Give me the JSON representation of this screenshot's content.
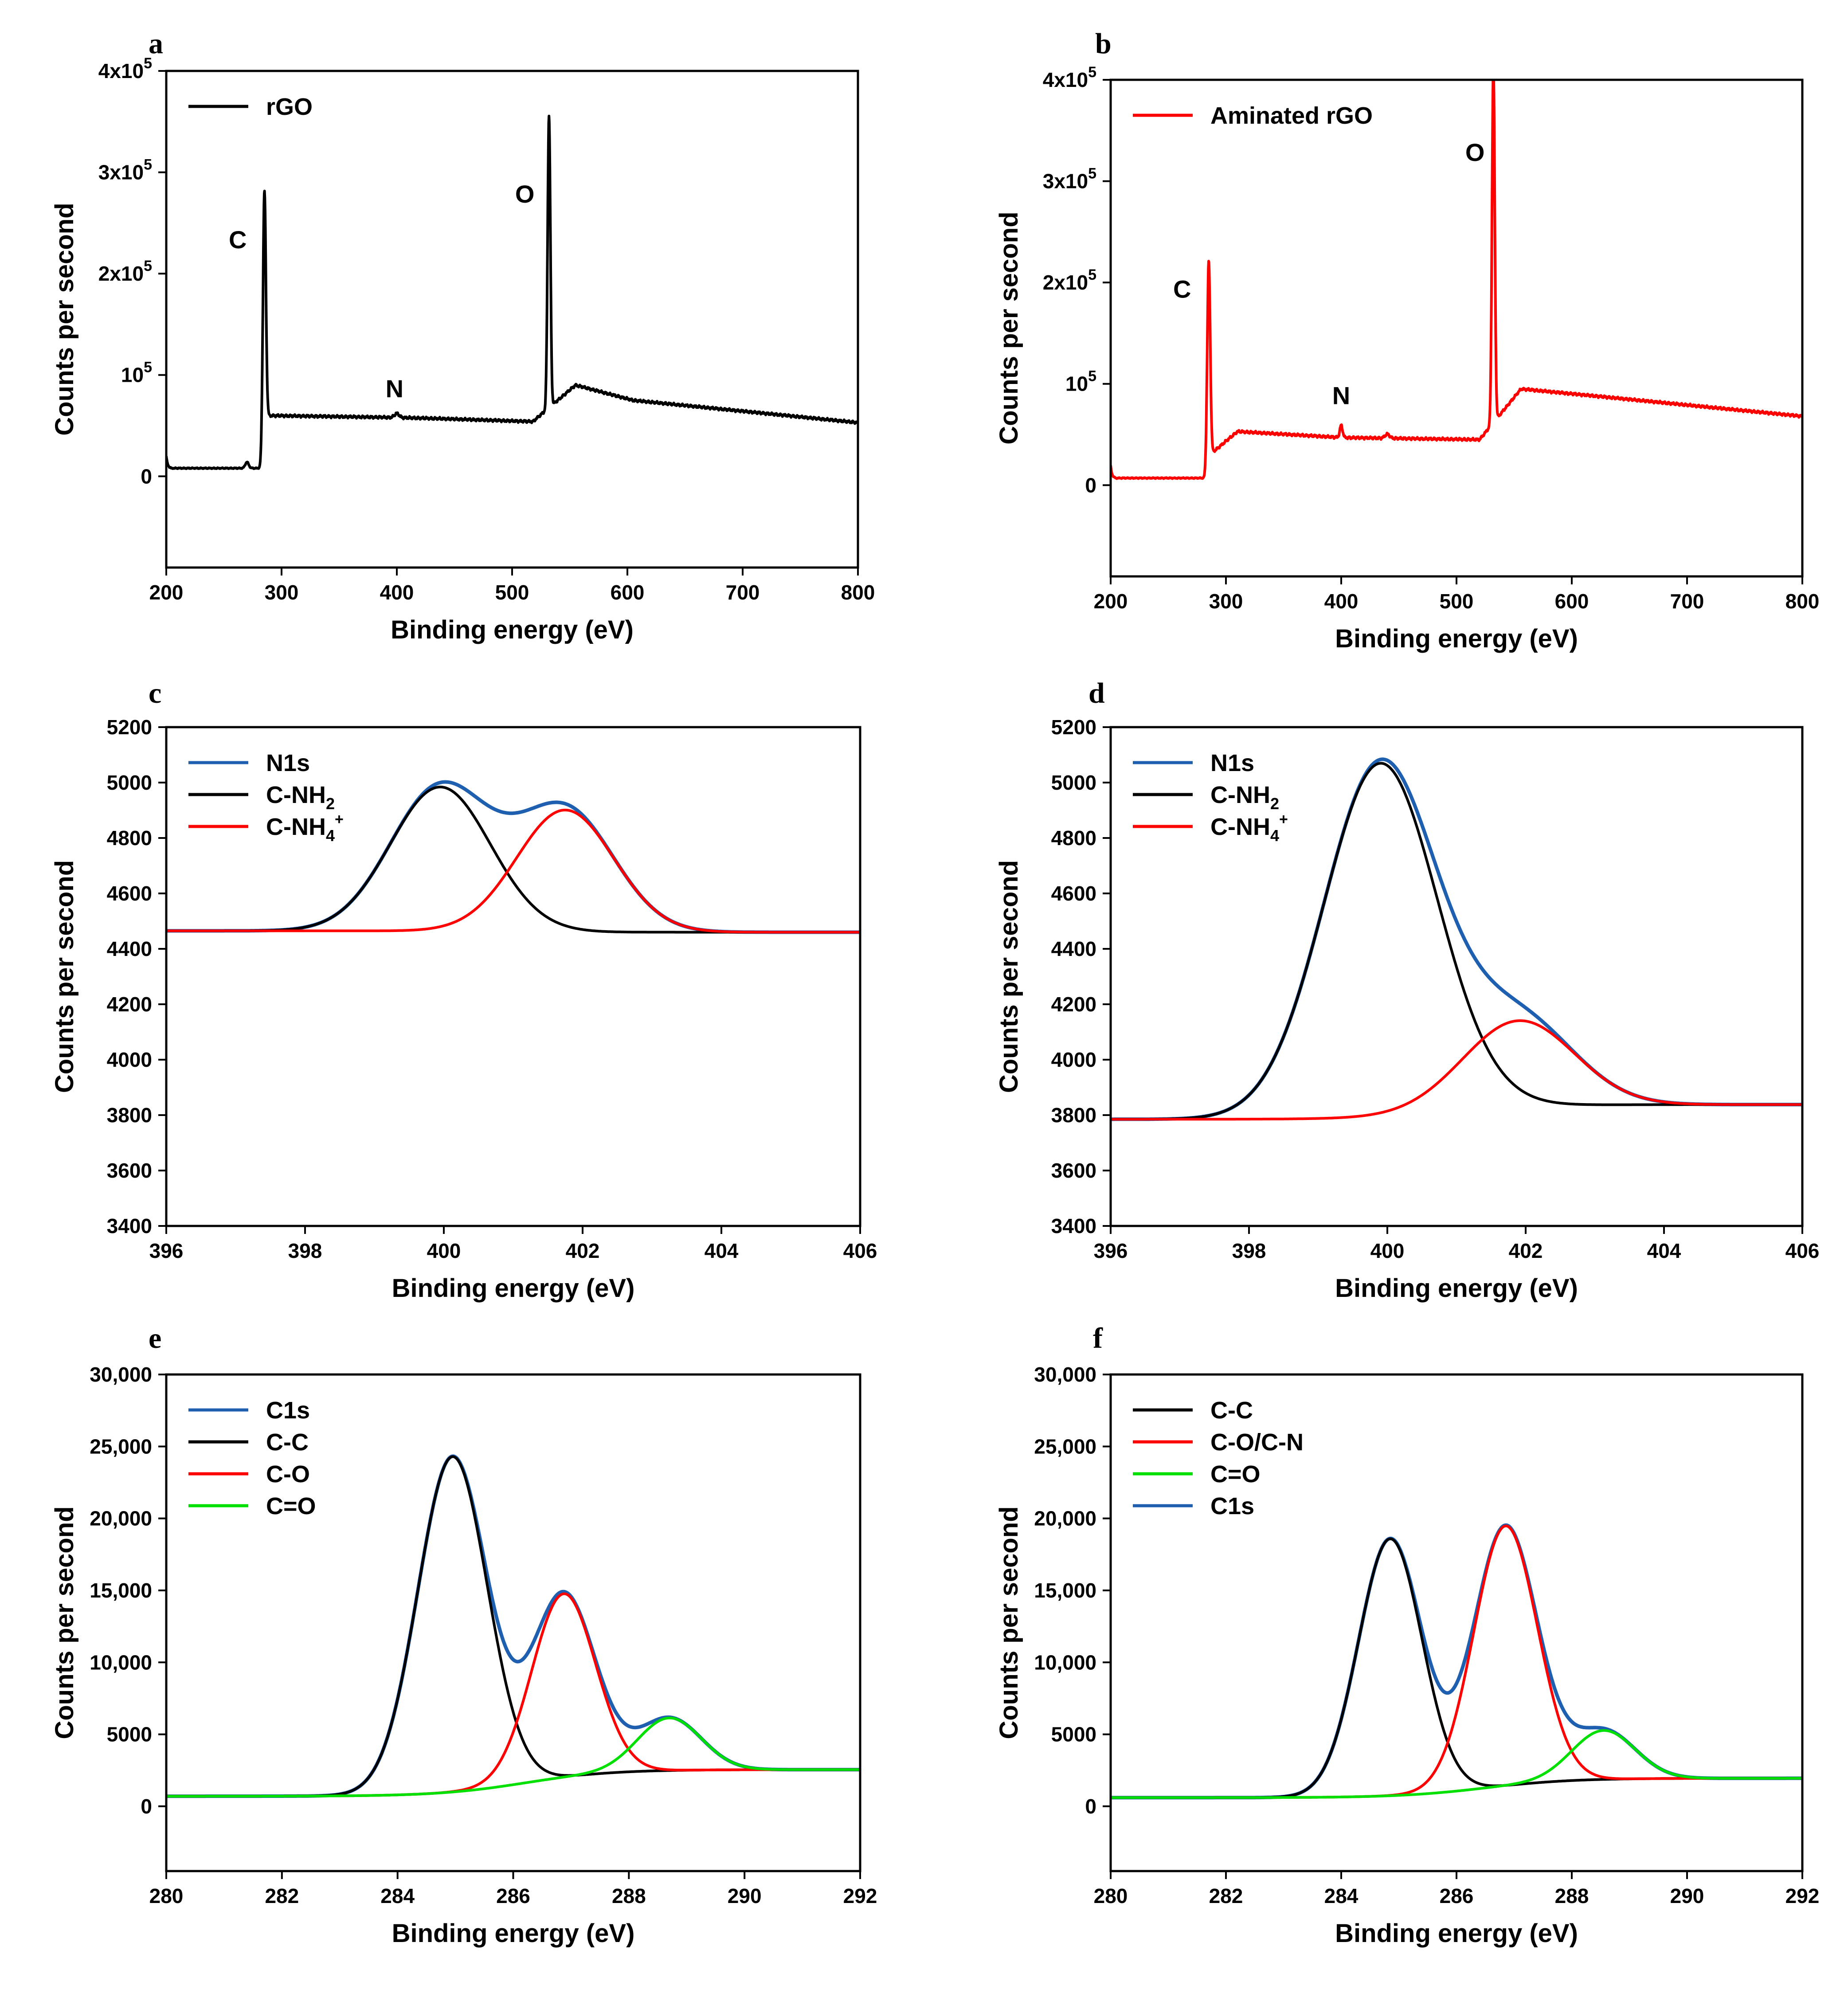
{
  "chart_data": [
    {
      "panel": "a",
      "type": "line",
      "xlabel": "Binding energy (eV)",
      "ylabel": "Counts per second",
      "xlim": [
        200,
        800
      ],
      "ylim": [
        -90000,
        400000
      ],
      "xticks": [
        200,
        300,
        400,
        500,
        600,
        700,
        800
      ],
      "yticks": [
        {
          "value": 0,
          "base": "0",
          "exp": ""
        },
        {
          "value": 100000,
          "base": "10",
          "exp": "5"
        },
        {
          "value": 200000,
          "base": "2x10",
          "exp": "5"
        },
        {
          "value": 300000,
          "base": "3x10",
          "exp": "5"
        },
        {
          "value": 400000,
          "base": "4x10",
          "exp": "5"
        }
      ],
      "legend": {
        "position": "top-left"
      },
      "series": [
        {
          "name": "rGO",
          "color": "#000000",
          "shape": "survey",
          "base": 8000,
          "offsets": [
            [
              286,
              60000
            ],
            [
              401,
              58000
            ],
            [
              436,
              57000
            ],
            [
              518,
              54000
            ],
            [
              555,
              90000
            ],
            [
              605,
              75000
            ],
            [
              800,
              53000
            ]
          ],
          "peaks": [
            [
              285,
              245000,
              1.3
            ],
            [
              532,
              288000,
              1.2
            ],
            [
              400,
              4000,
              2
            ],
            [
              270,
              6000,
              1.5
            ]
          ]
        }
      ],
      "annotations": [
        {
          "text": "C",
          "x": 262,
          "y": 225000
        },
        {
          "text": "N",
          "x": 398,
          "y": 78000
        },
        {
          "text": "O",
          "x": 511,
          "y": 270000
        }
      ]
    },
    {
      "panel": "b",
      "type": "line",
      "xlabel": "Binding energy (eV)",
      "ylabel": "Counts per second",
      "xlim": [
        200,
        800
      ],
      "ylim": [
        -90000,
        400000
      ],
      "xticks": [
        200,
        300,
        400,
        500,
        600,
        700,
        800
      ],
      "yticks": [
        {
          "value": 0,
          "base": "0",
          "exp": ""
        },
        {
          "value": 100000,
          "base": "10",
          "exp": "5"
        },
        {
          "value": 200000,
          "base": "2x10",
          "exp": "5"
        },
        {
          "value": 300000,
          "base": "3x10",
          "exp": "5"
        },
        {
          "value": 400000,
          "base": "4x10",
          "exp": "5"
        }
      ],
      "legend": {
        "position": "top-left"
      },
      "series": [
        {
          "name": "Aminated rGO",
          "color": "#ff0000",
          "shape": "survey",
          "base": 7000,
          "offsets": [
            [
              286,
              30000
            ],
            [
              310,
              53000
            ],
            [
              400,
              47000
            ],
            [
              520,
              45000
            ],
            [
              556,
              95000
            ],
            [
              620,
              88000
            ],
            [
              800,
              68000
            ]
          ],
          "peaks": [
            [
              285,
              202000,
              1.3
            ],
            [
              532,
              352000,
              1.2
            ],
            [
              400,
              12000,
              1.2
            ],
            [
              440,
              4000,
              2
            ]
          ]
        }
      ],
      "annotations": [
        {
          "text": "C",
          "x": 262,
          "y": 185000
        },
        {
          "text": "N",
          "x": 400,
          "y": 80000
        },
        {
          "text": "O",
          "x": 516,
          "y": 320000
        }
      ]
    },
    {
      "panel": "c",
      "type": "line",
      "xlabel": "Binding energy (eV)",
      "ylabel": "Counts per second",
      "xlim": [
        396,
        406
      ],
      "ylim": [
        3400,
        5200
      ],
      "xticks": [
        396,
        398,
        400,
        402,
        404,
        406
      ],
      "yticks": [
        3400,
        3600,
        3800,
        4000,
        4200,
        4400,
        4600,
        4800,
        5000,
        5200
      ],
      "legend": {
        "position": "top-left"
      },
      "baseline": {
        "start": 4465,
        "end": 4460
      },
      "components": [
        {
          "name": "C-NH",
          "sub": "2",
          "sup": "",
          "color": "#000000",
          "center": 399.95,
          "amplitude": 520,
          "sigma": 0.72
        },
        {
          "name": "C-NH",
          "sub": "4",
          "sup": "+",
          "color": "#ff0000",
          "center": 401.75,
          "amplitude": 440,
          "sigma": 0.7
        }
      ],
      "envelope": {
        "name": "N1s",
        "color": "#1f5fb0"
      }
    },
    {
      "panel": "d",
      "type": "line",
      "xlabel": "Binding energy (eV)",
      "ylabel": "Counts per second",
      "xlim": [
        396,
        406
      ],
      "ylim": [
        3400,
        5200
      ],
      "xticks": [
        396,
        398,
        400,
        402,
        404,
        406
      ],
      "yticks": [
        3400,
        3600,
        3800,
        4000,
        4200,
        4400,
        4600,
        4800,
        5000,
        5200
      ],
      "legend": {
        "position": "top-left"
      },
      "baseline": {
        "start": 3785,
        "end": 3838
      },
      "components": [
        {
          "name": "C-NH",
          "sub": "2",
          "sup": "",
          "color": "#000000",
          "center": 399.9,
          "amplitude": 1275,
          "sigma": 0.82
        },
        {
          "name": "C-NH",
          "sub": "4",
          "sup": "+",
          "color": "#ff0000",
          "center": 401.9,
          "amplitude": 310,
          "sigma": 0.8
        }
      ],
      "envelope": {
        "name": "N1s",
        "color": "#1f5fb0"
      }
    },
    {
      "panel": "e",
      "type": "line",
      "xlabel": "Binding energy (eV)",
      "ylabel": "Counts per second",
      "xlim": [
        280,
        292
      ],
      "ylim": [
        -4500,
        30000
      ],
      "xticks": [
        280,
        282,
        284,
        286,
        288,
        290,
        292
      ],
      "yticks": [
        {
          "value": 0,
          "label": "0"
        },
        {
          "value": 5000,
          "label": "5000"
        },
        {
          "value": 10000,
          "label": "10,000"
        },
        {
          "value": 15000,
          "label": "15,000"
        },
        {
          "value": 20000,
          "label": "20,000"
        },
        {
          "value": 25000,
          "label": "25,000"
        },
        {
          "value": 30000,
          "label": "30,000"
        }
      ],
      "legend": {
        "position": "top-left",
        "order": [
          "C1s",
          "C-C",
          "C-O",
          "C=O"
        ]
      },
      "baseline": {
        "type": "shirley",
        "low": 700,
        "high": 2550,
        "center": 286.2,
        "width": 0.75
      },
      "components": [
        {
          "name": "C-C",
          "color": "#000000",
          "center": 284.95,
          "amplitude": 23300,
          "sigma": 0.6
        },
        {
          "name": "C-O",
          "color": "#ff0000",
          "center": 286.87,
          "amplitude": 12750,
          "sigma": 0.55
        },
        {
          "name": "C=O",
          "color": "#00e000",
          "center": 288.7,
          "amplitude": 3650,
          "sigma": 0.55
        }
      ],
      "envelope": {
        "name": "C1s",
        "color": "#1f5fb0"
      }
    },
    {
      "panel": "f",
      "type": "line",
      "xlabel": "Binding energy (eV)",
      "ylabel": "Counts per second",
      "xlim": [
        280,
        292
      ],
      "ylim": [
        -4500,
        30000
      ],
      "xticks": [
        280,
        282,
        284,
        286,
        288,
        290,
        292
      ],
      "yticks": [
        {
          "value": 0,
          "label": "0"
        },
        {
          "value": 5000,
          "label": "5000"
        },
        {
          "value": 10000,
          "label": "10,000"
        },
        {
          "value": 15000,
          "label": "15,000"
        },
        {
          "value": 20000,
          "label": "20,000"
        },
        {
          "value": 25000,
          "label": "25,000"
        },
        {
          "value": 30000,
          "label": "30,000"
        }
      ],
      "legend": {
        "position": "top-left",
        "order": [
          "C-C",
          "C-O/C-N",
          "C=O",
          "C1s"
        ]
      },
      "baseline": {
        "type": "shirley",
        "low": 600,
        "high": 1950,
        "center": 286.5,
        "width": 0.75
      },
      "components": [
        {
          "name": "C-C",
          "color": "#000000",
          "center": 284.85,
          "amplitude": 17850,
          "sigma": 0.55
        },
        {
          "name": "C-O/C-N",
          "color": "#ff0000",
          "center": 286.85,
          "amplitude": 18050,
          "sigma": 0.55
        },
        {
          "name": "C=O",
          "color": "#00e000",
          "center": 288.55,
          "amplitude": 3400,
          "sigma": 0.55
        }
      ],
      "envelope": {
        "name": "C1s",
        "color": "#1f5fb0"
      }
    }
  ]
}
